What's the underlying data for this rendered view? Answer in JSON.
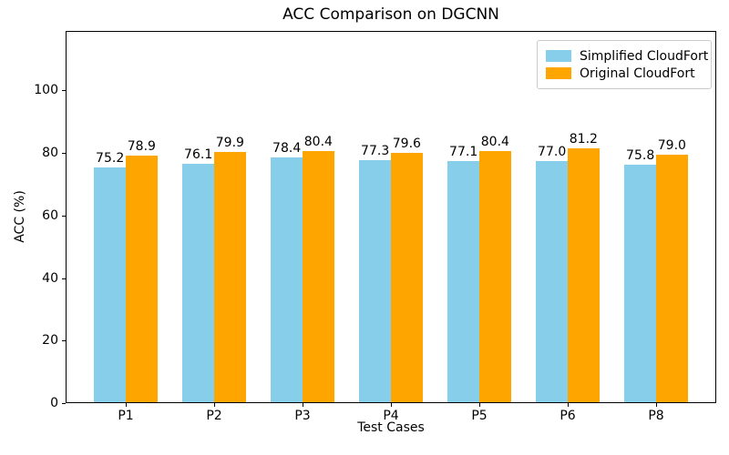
{
  "chart_data": {
    "type": "bar",
    "title": "ACC Comparison on DGCNN",
    "xlabel": "Test Cases",
    "ylabel": "ACC (%)",
    "categories": [
      "P1",
      "P2",
      "P3",
      "P4",
      "P5",
      "P6",
      "P8"
    ],
    "series": [
      {
        "name": "Simplified CloudFort",
        "color": "#87CEEB",
        "values": [
          75.2,
          76.1,
          78.4,
          77.3,
          77.1,
          77.0,
          75.8
        ]
      },
      {
        "name": "Original CloudFort",
        "color": "#FFA500",
        "values": [
          78.9,
          79.9,
          80.4,
          79.6,
          80.4,
          81.2,
          79.0
        ]
      }
    ],
    "value_label_decimals": 1,
    "yticks": [
      0,
      20,
      40,
      60,
      80,
      100
    ],
    "ylim": [
      0,
      119
    ],
    "grid": false,
    "legend_position": "upper right",
    "background_color": "#ffffff",
    "axis_color": "#000000"
  }
}
